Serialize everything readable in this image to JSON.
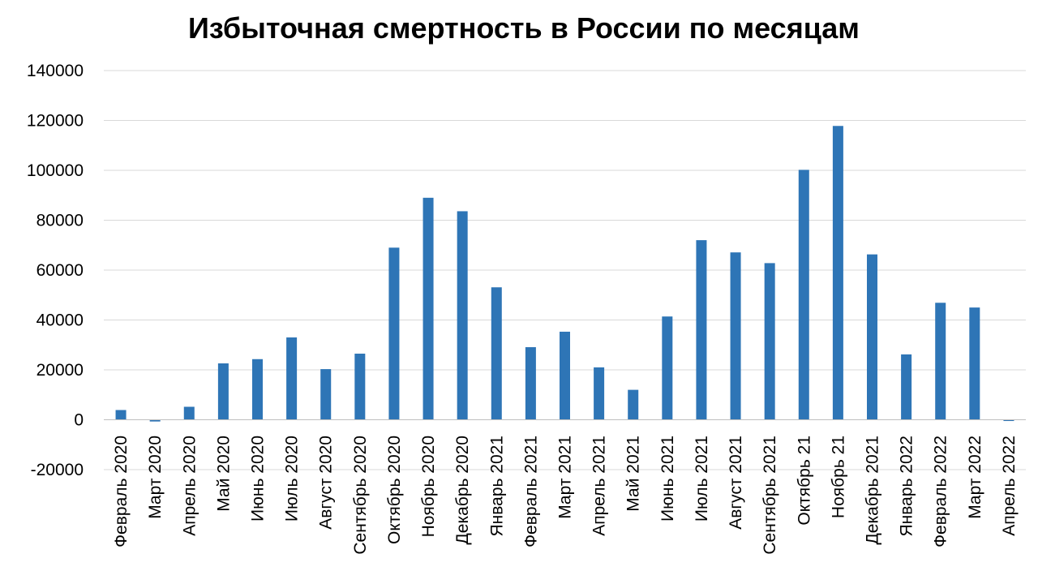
{
  "chart_data": {
    "type": "bar",
    "title": "Избыточная смертность в России по месяцам",
    "xlabel": "",
    "ylabel": "",
    "ylim": [
      -20000,
      140000
    ],
    "yticks": [
      "-20000",
      "0",
      "20000",
      "40000",
      "60000",
      "80000",
      "100000",
      "120000",
      "140000"
    ],
    "grid": true,
    "legend": "none",
    "bar_color": "#2E75B6",
    "categories": [
      "Февраль 2020",
      "Март 2020",
      "Апрель 2020",
      "Май 2020",
      "Июнь 2020",
      "Июль 2020",
      "Август 2020",
      "Сентябрь 2020",
      "Октябрь 2020",
      "Ноябрь 2020",
      "Декабрь 2020",
      "Январь 2021",
      "Февраль 2021",
      "Март 2021",
      "Апрель 2021",
      "Май 2021",
      "Июнь 2021",
      "Июль 2021",
      "Август 2021",
      "Сентябрь 2021",
      "Октябрь 21",
      "Ноябрь 21",
      "Декабрь 2021",
      "Январь 2022",
      "Февраль 2022",
      "Март 2022",
      "Апрель 2022"
    ],
    "values": [
      3900,
      -700,
      5200,
      22600,
      24300,
      33000,
      20300,
      26500,
      69000,
      89000,
      83600,
      53100,
      29100,
      35300,
      21000,
      12000,
      41400,
      72000,
      67100,
      62800,
      100200,
      117800,
      66300,
      26200,
      46900,
      45000,
      -500
    ]
  }
}
